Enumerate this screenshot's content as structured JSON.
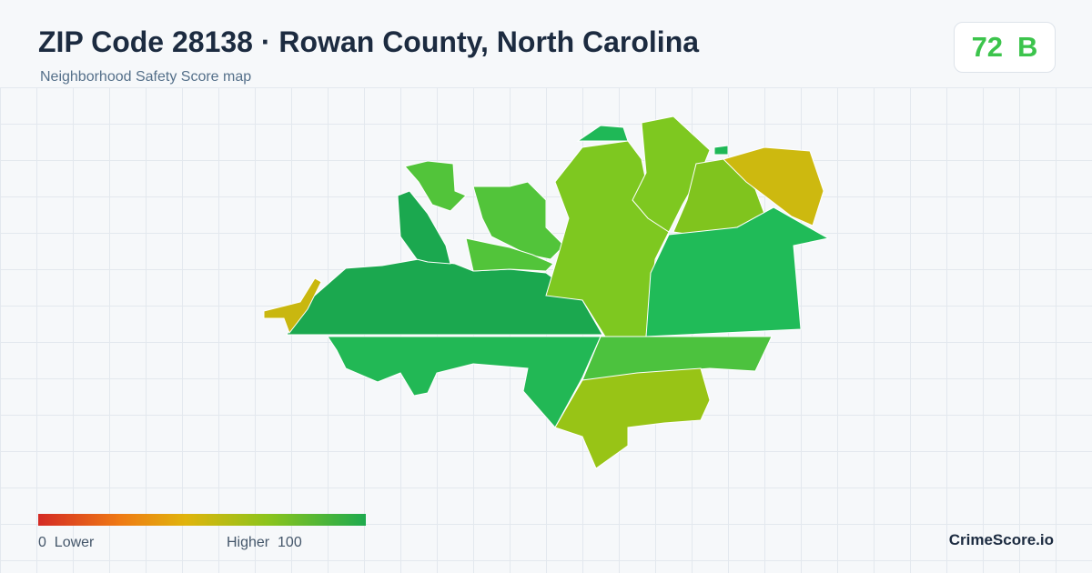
{
  "header": {
    "title": "ZIP Code 28138 · Rowan County, North Carolina",
    "subtitle": "Neighborhood Safety Score map"
  },
  "score": {
    "value": 72,
    "grade": "B"
  },
  "legend": {
    "min": 0,
    "min_label": "Lower",
    "max_label": "Higher",
    "max": 100
  },
  "brand": "CrimeScore.io"
}
